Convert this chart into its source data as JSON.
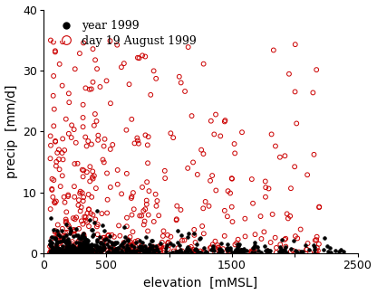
{
  "xlim": [
    0,
    2500
  ],
  "ylim": [
    0,
    40
  ],
  "xticks": [
    0,
    500,
    1000,
    1500,
    2000,
    2500
  ],
  "xticklabels": [
    "0",
    "500",
    "",
    "1500",
    "",
    "2500"
  ],
  "yticks": [
    0,
    10,
    20,
    30,
    40
  ],
  "xlabel": "elevation  [mMSL]",
  "ylabel": "precip  [mm/d]",
  "legend_labels": [
    "year 1999",
    "day 19 August 1999"
  ],
  "black_dot_color": "#000000",
  "red_circle_color": "#cc0000",
  "axis_fontsize": 10,
  "tick_fontsize": 9,
  "legend_fontsize": 9
}
